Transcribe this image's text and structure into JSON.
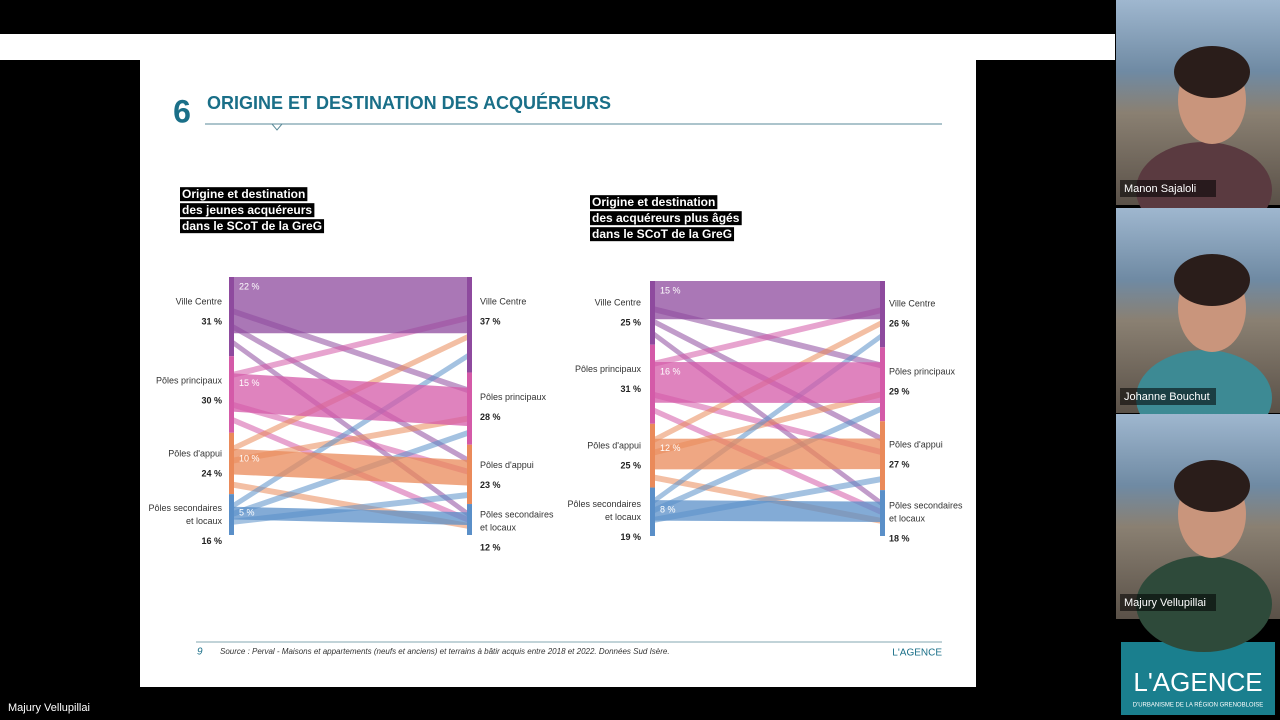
{
  "window": {
    "speaker_name": "Majury Vellupillai"
  },
  "slide": {
    "number": "6",
    "title": "ORIGINE ET DESTINATION DES ACQUÉREURS",
    "page": "9",
    "source": "Source : Perval - Maisons et appartements (neufs et anciens) et terrains à bâtir acquis entre 2018 et 2022. Données Sud Isère.",
    "logo": "L'AGENCE",
    "sankeys": [
      {
        "title": [
          "Origine et destination",
          "des jeunes acquéreurs",
          "dans le SCoT de la GreG"
        ],
        "left": [
          {
            "label": [
              "Ville Centre"
            ],
            "share": {
              "value": 31,
              "label": "31 %"
            },
            "stay": {
              "value": 22,
              "label": "22 %"
            }
          },
          {
            "label": [
              "Pôles principaux"
            ],
            "share": {
              "value": 30,
              "label": "30 %"
            },
            "stay": {
              "value": 15,
              "label": "15 %"
            }
          },
          {
            "label": [
              "Pôles d'appui"
            ],
            "share": {
              "value": 24,
              "label": "24 %"
            },
            "stay": {
              "value": 10,
              "label": "10 %"
            }
          },
          {
            "label": [
              "Pôles secondaires",
              "et locaux"
            ],
            "share": {
              "value": 16,
              "label": "16 %"
            },
            "stay": {
              "value": 5,
              "label": "5 %"
            }
          }
        ],
        "right": [
          {
            "label": [
              "Ville Centre"
            ],
            "share": {
              "value": 37,
              "label": "37 %"
            }
          },
          {
            "label": [
              "Pôles principaux"
            ],
            "share": {
              "value": 28,
              "label": "28 %"
            }
          },
          {
            "label": [
              "Pôles d'appui"
            ],
            "share": {
              "value": 23,
              "label": "23 %"
            }
          },
          {
            "label": [
              "Pôles secondaires",
              "et locaux"
            ],
            "share": {
              "value": 12,
              "label": "12 %"
            }
          }
        ]
      },
      {
        "title": [
          "Origine et destination",
          "des acquéreurs plus âgés",
          "dans le SCoT de la GreG"
        ],
        "left": [
          {
            "label": [
              "Ville Centre"
            ],
            "share": {
              "value": 25,
              "label": "25 %"
            },
            "stay": {
              "value": 15,
              "label": "15 %"
            }
          },
          {
            "label": [
              "Pôles principaux"
            ],
            "share": {
              "value": 31,
              "label": "31 %"
            },
            "stay": {
              "value": 16,
              "label": "16 %"
            }
          },
          {
            "label": [
              "Pôles d'appui"
            ],
            "share": {
              "value": 25,
              "label": "25 %"
            },
            "stay": {
              "value": 12,
              "label": "12 %"
            }
          },
          {
            "label": [
              "Pôles secondaires",
              "et locaux"
            ],
            "share": {
              "value": 19,
              "label": "19 %"
            },
            "stay": {
              "value": 8,
              "label": "8 %"
            }
          }
        ],
        "right": [
          {
            "label": [
              "Ville Centre"
            ],
            "share": {
              "value": 26,
              "label": "26 %"
            }
          },
          {
            "label": [
              "Pôles principaux"
            ],
            "share": {
              "value": 29,
              "label": "29 %"
            }
          },
          {
            "label": [
              "Pôles d'appui"
            ],
            "share": {
              "value": 27,
              "label": "27 %"
            }
          },
          {
            "label": [
              "Pôles secondaires",
              "et locaux"
            ],
            "share": {
              "value": 18,
              "label": "18 %"
            }
          }
        ]
      }
    ]
  },
  "participants": [
    {
      "name": "Manon Sajaloli"
    },
    {
      "name": "Johanne Bouchut"
    },
    {
      "name": "Majury Vellupillai"
    }
  ],
  "brand": {
    "name": "L'AGENCE",
    "tagline": "D'URBANISME DE LA RÉGION GRENOBLOISE"
  }
}
